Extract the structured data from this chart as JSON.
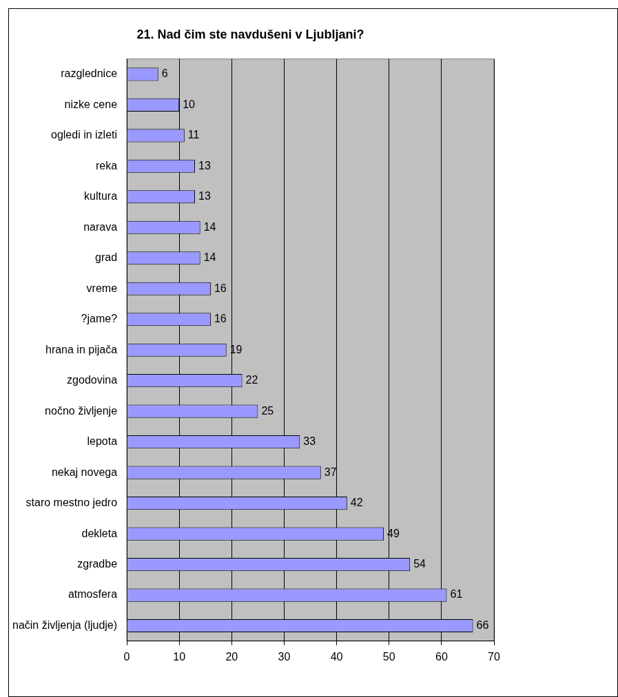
{
  "chart_data": {
    "type": "bar",
    "orientation": "horizontal",
    "title": "21. Nad čim ste navdušeni v Ljubljani?",
    "categories": [
      "razglednice",
      "nizke cene",
      "ogledi in izleti",
      "reka",
      "kultura",
      "narava",
      "grad",
      "vreme",
      "?jame?",
      "hrana in pijača",
      "zgodovina",
      "nočno življenje",
      "lepota",
      "nekaj novega",
      "staro mestno jedro",
      "dekleta",
      "zgradbe",
      "atmosfera",
      "način življenja (ljudje)"
    ],
    "values": [
      6,
      10,
      11,
      13,
      13,
      14,
      14,
      16,
      16,
      19,
      22,
      25,
      33,
      37,
      42,
      49,
      54,
      61,
      66
    ],
    "color": "#9999ff",
    "xlim": [
      0,
      70
    ],
    "xticks": [
      0,
      10,
      20,
      30,
      40,
      50,
      60,
      70
    ],
    "grid": "x",
    "legend": false,
    "data_labels": true
  }
}
